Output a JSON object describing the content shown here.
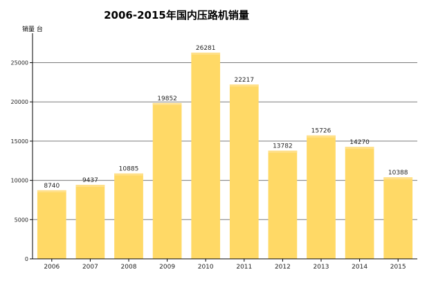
{
  "chart_data": {
    "type": "bar",
    "title": "2006-2015年国内压路机销量",
    "ylabel": "销量 台",
    "xlabel": "",
    "categories": [
      "2006",
      "2007",
      "2008",
      "2009",
      "2010",
      "2011",
      "2012",
      "2013",
      "2014",
      "2015"
    ],
    "values": [
      8740,
      9437,
      10885,
      19852,
      26281,
      22217,
      13782,
      15726,
      14270,
      10388
    ],
    "ylim": [
      0,
      28750
    ],
    "yticks": [
      0,
      5000,
      10000,
      15000,
      20000,
      25000
    ],
    "grid": true,
    "legend": "none",
    "colors": {
      "bar": "#ffd966",
      "bar_top": "#ffe08a",
      "grid": "#7a7a7a",
      "axis": "#000000",
      "text": "#222222"
    }
  }
}
